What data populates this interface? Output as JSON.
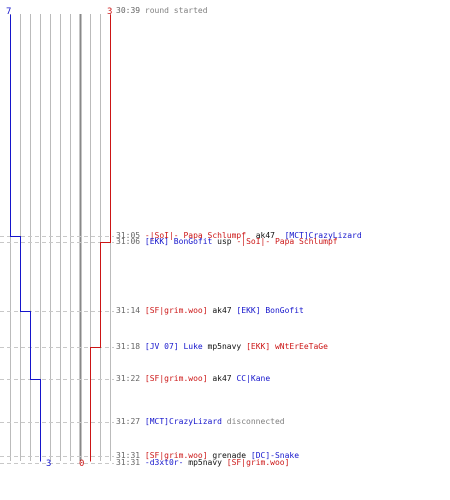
{
  "colors": {
    "team_blue": "#1515cc",
    "team_red": "#cc1515",
    "grid": "#bbbbbb",
    "dash": "#c8c8c8",
    "center": "#888888",
    "time": "#666666",
    "system": "#808080"
  },
  "score_labels": {
    "blue_start": "7",
    "red_start": "3",
    "blue_end": "3",
    "red_end": "0"
  },
  "events": [
    {
      "time": "30:39",
      "parts": [
        {
          "text": "round started",
          "kind": "system"
        }
      ]
    },
    {
      "time": "31:05",
      "parts": [
        {
          "text": "-|SoI|- Papa Schlumpf",
          "kind": "red"
        },
        {
          "text": "  ak47  ",
          "kind": "weapon"
        },
        {
          "text": "[MCT]CrazyLizard",
          "kind": "blue"
        }
      ]
    },
    {
      "time": "31:06",
      "parts": [
        {
          "text": "[EKK] BonGofit",
          "kind": "blue"
        },
        {
          "text": " usp ",
          "kind": "weapon"
        },
        {
          "text": "-|SoI|- Papa Schlumpf",
          "kind": "red"
        }
      ]
    },
    {
      "time": "31:14",
      "parts": [
        {
          "text": "[SF|grim.woo]",
          "kind": "red"
        },
        {
          "text": " ak47 ",
          "kind": "weapon"
        },
        {
          "text": "[EKK] BonGofit",
          "kind": "blue"
        }
      ]
    },
    {
      "time": "31:18",
      "parts": [
        {
          "text": "[JV 07] Luke",
          "kind": "blue"
        },
        {
          "text": " mp5navy ",
          "kind": "weapon"
        },
        {
          "text": "[EKK] wNtErEeTaGe",
          "kind": "red"
        }
      ]
    },
    {
      "time": "31:22",
      "parts": [
        {
          "text": "[SF|grim.woo]",
          "kind": "red"
        },
        {
          "text": " ak47 ",
          "kind": "weapon"
        },
        {
          "text": "CC|Kane",
          "kind": "blue"
        }
      ]
    },
    {
      "time": "31:27",
      "parts": [
        {
          "text": "[MCT]CrazyLizard",
          "kind": "blue"
        },
        {
          "text": " disconnected",
          "kind": "system"
        }
      ]
    },
    {
      "time": "31:31",
      "parts": [
        {
          "text": "[SF|grim.woo]",
          "kind": "red"
        },
        {
          "text": " grenade ",
          "kind": "weapon"
        },
        {
          "text": "[DC]-Snake",
          "kind": "blue"
        }
      ]
    },
    {
      "time": "31:31",
      "parts": [
        {
          "text": "-d3xt0r-",
          "kind": "blue"
        },
        {
          "text": " mp5navy ",
          "kind": "weapon"
        },
        {
          "text": "[SF|grim.woo]",
          "kind": "red"
        }
      ]
    }
  ]
}
